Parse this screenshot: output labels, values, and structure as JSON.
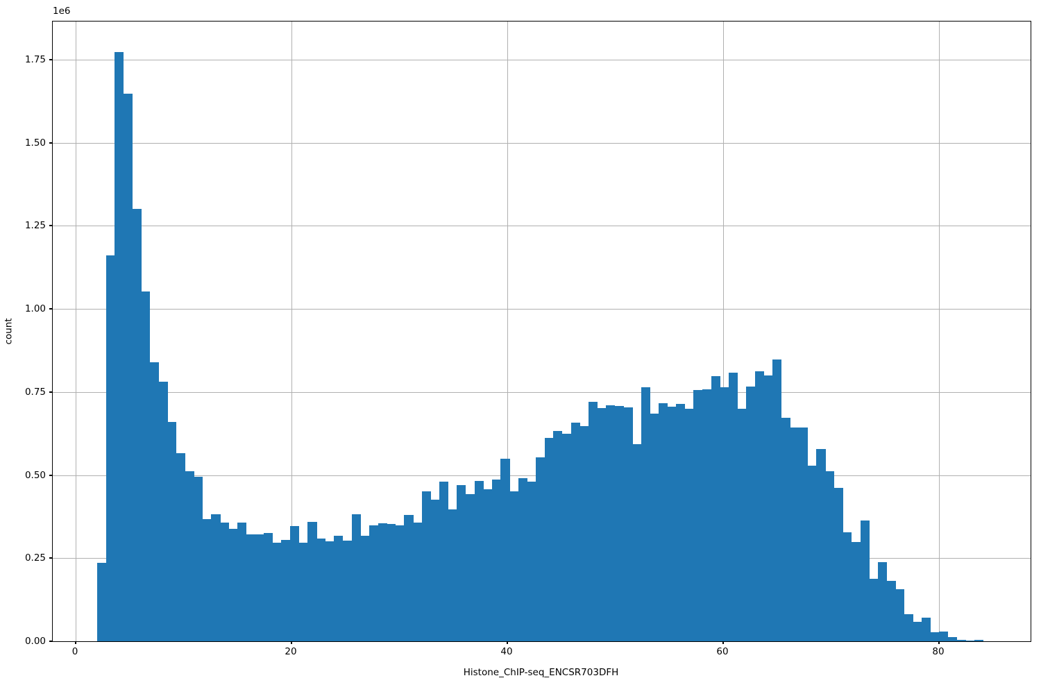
{
  "figure": {
    "background": "#ffffff",
    "xlabel": "Histone_ChIP-seq_ENCSR703DFH",
    "ylabel": "count",
    "y_offset_label": "1e6"
  },
  "chart_data": {
    "type": "bar",
    "subtype": "histogram",
    "title": "",
    "xlabel": "Histone_ChIP-seq_ENCSR703DFH",
    "ylabel": "count",
    "y_scale_offset_text": "1e6",
    "grid": true,
    "legend": "none",
    "bar_color": "#1f77b4",
    "grid_color": "#b0b0b0",
    "spine_color": "#000000",
    "xlim": [
      -2.1,
      88.6
    ],
    "ylim_1e6": [
      0,
      1.863
    ],
    "x_tick_values": [
      0,
      20,
      40,
      60,
      80
    ],
    "x_tick_labels": [
      "0",
      "20",
      "40",
      "60",
      "80"
    ],
    "y_tick_values_1e6": [
      0.0,
      0.25,
      0.5,
      0.75,
      1.0,
      1.25,
      1.5,
      1.75
    ],
    "y_tick_labels": [
      "0.00",
      "0.25",
      "0.50",
      "0.75",
      "1.00",
      "1.25",
      "1.50",
      "1.75"
    ],
    "bin_start": 2.0,
    "bin_width": 0.813,
    "counts_1e6": [
      0.235,
      1.16,
      1.772,
      1.648,
      1.3,
      1.053,
      0.84,
      0.78,
      0.66,
      0.565,
      0.512,
      0.495,
      0.368,
      0.382,
      0.357,
      0.339,
      0.357,
      0.321,
      0.321,
      0.325,
      0.296,
      0.304,
      0.346,
      0.296,
      0.36,
      0.31,
      0.3,
      0.318,
      0.302,
      0.383,
      0.318,
      0.348,
      0.355,
      0.353,
      0.348,
      0.381,
      0.358,
      0.452,
      0.426,
      0.48,
      0.397,
      0.47,
      0.443,
      0.483,
      0.458,
      0.487,
      0.549,
      0.451,
      0.49,
      0.48,
      0.553,
      0.611,
      0.633,
      0.624,
      0.657,
      0.648,
      0.72,
      0.701,
      0.709,
      0.708,
      0.703,
      0.592,
      0.765,
      0.685,
      0.717,
      0.705,
      0.713,
      0.7,
      0.755,
      0.758,
      0.797,
      0.765,
      0.808,
      0.7,
      0.767,
      0.813,
      0.8,
      0.847,
      0.672,
      0.643,
      0.643,
      0.528,
      0.579,
      0.511,
      0.462,
      0.328,
      0.298,
      0.363,
      0.188,
      0.238,
      0.181,
      0.156,
      0.081,
      0.059,
      0.071,
      0.027,
      0.03,
      0.012,
      0.004,
      0.002,
      0.004
    ]
  }
}
